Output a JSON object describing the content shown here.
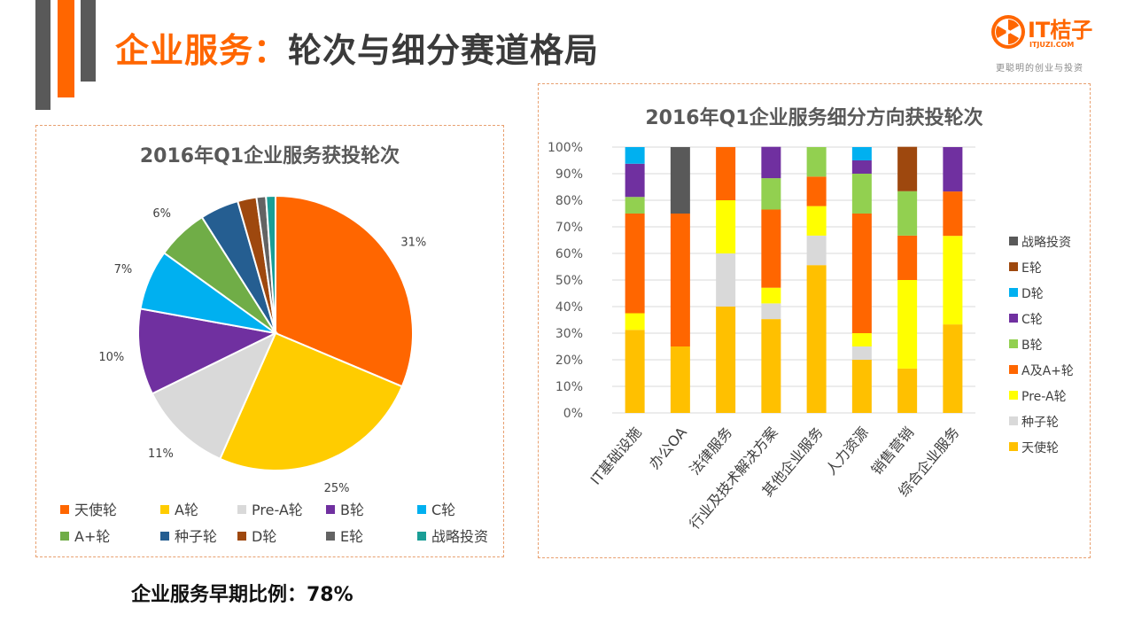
{
  "header": {
    "title_highlight": "企业服务：",
    "title_rest": "轮次与细分赛道格局"
  },
  "logo": {
    "name": "IT桔子",
    "url": "ITJUZI.COM",
    "slogan": "更聪明的创业与投资",
    "brand_color": "#ff6600"
  },
  "bottom_note": "企业服务早期比例：78%",
  "chart_data": [
    {
      "type": "pie",
      "title": "2016年Q1企业服务获投轮次",
      "labels": [
        "天使轮",
        "A轮",
        "Pre-A轮",
        "B轮",
        "C轮",
        "A+轮",
        "种子轮",
        "D轮",
        "E轮",
        "战略投资"
      ],
      "values": [
        31,
        25,
        11,
        10,
        7,
        6,
        4.5,
        2.2,
        1.1,
        1.1
      ],
      "value_labels": [
        "31%",
        "25%",
        "11%",
        "10%",
        "7%",
        "6%",
        "",
        "",
        "",
        ""
      ],
      "colors": [
        "#ff6600",
        "#ffcc00",
        "#d9d9d9",
        "#7030a0",
        "#00b0f0",
        "#70ad47",
        "#255e91",
        "#9e480e",
        "#636363",
        "#1a9e96"
      ],
      "legend_position": "bottom"
    },
    {
      "type": "bar",
      "stacked": true,
      "title": "2016年Q1企业服务细分方向获投轮次",
      "categories": [
        "IT基础设施",
        "办公OA",
        "法律服务",
        "行业及技术解决方案",
        "其他企业服务",
        "人力资源",
        "销售营销",
        "综合企业服务"
      ],
      "series": [
        {
          "name": "天使轮",
          "color": "#ffc000",
          "values": [
            31.25,
            25,
            40,
            35.3,
            55.6,
            20,
            16.7,
            33.3
          ]
        },
        {
          "name": "种子轮",
          "color": "#d9d9d9",
          "values": [
            0,
            0,
            20,
            5.9,
            11.1,
            5,
            0,
            0
          ]
        },
        {
          "name": "Pre-A轮",
          "color": "#ffff00",
          "values": [
            6.25,
            0,
            20,
            5.9,
            11.1,
            5,
            33.3,
            33.3
          ]
        },
        {
          "name": "A及A+轮",
          "color": "#ff6600",
          "values": [
            37.5,
            50,
            20,
            29.4,
            11.1,
            45,
            16.7,
            16.7
          ]
        },
        {
          "name": "B轮",
          "color": "#92d050",
          "values": [
            6.25,
            0,
            0,
            11.8,
            11.1,
            15,
            16.7,
            0
          ]
        },
        {
          "name": "C轮",
          "color": "#7030a0",
          "values": [
            12.5,
            0,
            0,
            11.8,
            0,
            5,
            0,
            16.7
          ]
        },
        {
          "name": "D轮",
          "color": "#00b0f0",
          "values": [
            6.25,
            0,
            0,
            0,
            0,
            5,
            0,
            0
          ]
        },
        {
          "name": "E轮",
          "color": "#9e480e",
          "values": [
            0,
            0,
            0,
            0,
            0,
            0,
            16.7,
            0
          ]
        },
        {
          "name": "战略投资",
          "color": "#595959",
          "values": [
            0,
            25,
            0,
            0,
            0,
            0,
            0,
            0
          ]
        }
      ],
      "y_ticks": [
        "0%",
        "10%",
        "20%",
        "30%",
        "40%",
        "50%",
        "60%",
        "70%",
        "80%",
        "90%",
        "100%"
      ],
      "ylim": [
        0,
        100
      ],
      "legend_order": [
        "战略投资",
        "E轮",
        "D轮",
        "C轮",
        "B轮",
        "A及A+轮",
        "Pre-A轮",
        "种子轮",
        "天使轮"
      ],
      "legend_position": "right",
      "grid": true
    }
  ]
}
